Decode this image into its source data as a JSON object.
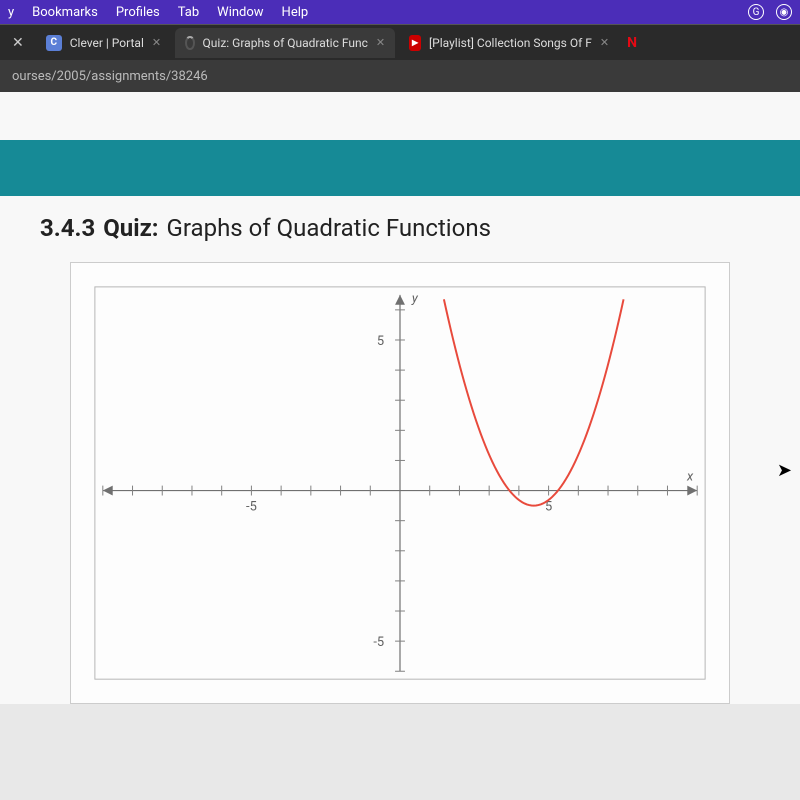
{
  "menubar": {
    "items": [
      "y",
      "Bookmarks",
      "Profiles",
      "Tab",
      "Window",
      "Help"
    ]
  },
  "tabs": [
    {
      "title": "Clever | Portal",
      "favicon": "C",
      "faviconClass": "clever-icon",
      "active": false
    },
    {
      "title": "Quiz: Graphs of Quadratic Func",
      "favicon": "",
      "faviconClass": "spinner-icon",
      "active": true
    },
    {
      "title": "[Playlist] Collection Songs Of F",
      "favicon": "▶",
      "faviconClass": "yt-icon",
      "active": false
    },
    {
      "title": "N",
      "favicon": "N",
      "faviconClass": "netflix-icon",
      "active": false
    }
  ],
  "url": "ourses/2005/assignments/38246",
  "quiz": {
    "number": "3.4.3",
    "label": "Quiz:",
    "name": "Graphs of Quadratic Functions"
  },
  "colors": {
    "menubar_bg": "#4b2db8",
    "tabstrip_bg": "#2a2a2a",
    "teal": "#168a96",
    "page_bg": "#f8f8f8",
    "chart_border": "#b5b5b5",
    "axis_color": "#707070",
    "tick_color": "#808080",
    "curve_color": "#e84a3c",
    "label_color": "#606060"
  },
  "chart": {
    "type": "line",
    "xlim": [
      -10,
      10
    ],
    "ylim": [
      -6,
      6.5
    ],
    "xtick_step": 1,
    "ytick_step": 1,
    "x_labels": [
      {
        "v": -5,
        "t": "-5"
      },
      {
        "v": 5,
        "t": "5"
      }
    ],
    "y_labels": [
      {
        "v": 5,
        "t": "5"
      },
      {
        "v": -5,
        "t": "-5"
      }
    ],
    "y_axis_label": "y",
    "x_axis_label": "x",
    "label_fontsize": 13,
    "axis_width": 1.2,
    "curve_width": 2,
    "parabola": {
      "vertex_x": 4.5,
      "vertex_y": -0.5,
      "a": 0.75,
      "x_from": 1.4,
      "x_to": 7.6
    }
  }
}
